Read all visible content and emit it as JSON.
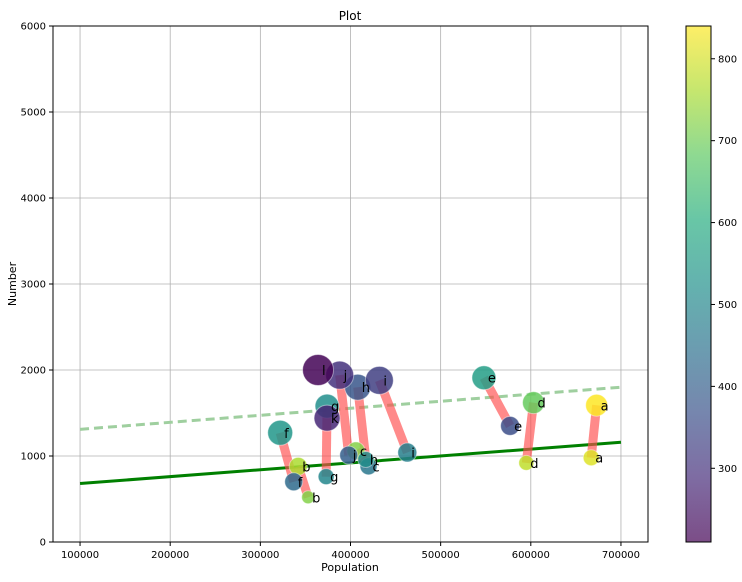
{
  "chart_data": {
    "type": "scatter",
    "title": "Plot",
    "xlabel": "Population",
    "ylabel": "Number",
    "xlim": [
      70000,
      730000
    ],
    "ylim": [
      0,
      6000
    ],
    "x_ticks": [
      100000,
      200000,
      300000,
      400000,
      500000,
      600000,
      700000
    ],
    "y_ticks": [
      0,
      1000,
      2000,
      3000,
      4000,
      5000,
      6000
    ],
    "grid": true,
    "colorbar": {
      "colormap": "viridis",
      "min": 210,
      "max": 840,
      "ticks": [
        300,
        400,
        500,
        600,
        700,
        800
      ]
    },
    "series": [
      {
        "points": [
          {
            "label": "a",
            "x": 673000,
            "y": 1590,
            "c": 840,
            "s": 22
          },
          {
            "label": "b",
            "x": 342000,
            "y": 880,
            "c": 760,
            "s": 18
          },
          {
            "label": "c",
            "x": 406000,
            "y": 1060,
            "c": 720,
            "s": 18
          },
          {
            "label": "d",
            "x": 603000,
            "y": 1620,
            "c": 690,
            "s": 22
          },
          {
            "label": "e",
            "x": 548000,
            "y": 1910,
            "c": 560,
            "s": 24
          },
          {
            "label": "f",
            "x": 322000,
            "y": 1270,
            "c": 540,
            "s": 25
          },
          {
            "label": "g",
            "x": 374000,
            "y": 1580,
            "c": 520,
            "s": 24
          },
          {
            "label": "h",
            "x": 408000,
            "y": 1800,
            "c": 380,
            "s": 26
          },
          {
            "label": "i",
            "x": 432000,
            "y": 1880,
            "c": 330,
            "s": 28
          },
          {
            "label": "j",
            "x": 388000,
            "y": 1940,
            "c": 300,
            "s": 28
          },
          {
            "label": "k",
            "x": 374000,
            "y": 1440,
            "c": 280,
            "s": 26
          },
          {
            "label": "l",
            "x": 364000,
            "y": 2000,
            "c": 215,
            "s": 31
          }
        ]
      },
      {
        "points": [
          {
            "label": "a",
            "x": 667000,
            "y": 980,
            "c": 810,
            "s": 16
          },
          {
            "label": "b",
            "x": 353000,
            "y": 520,
            "c": 720,
            "s": 13
          },
          {
            "label": "c",
            "x": 420000,
            "y": 880,
            "c": 460,
            "s": 17
          },
          {
            "label": "d",
            "x": 595000,
            "y": 920,
            "c": 780,
            "s": 15
          },
          {
            "label": "e",
            "x": 577000,
            "y": 1350,
            "c": 360,
            "s": 19
          },
          {
            "label": "f",
            "x": 337000,
            "y": 700,
            "c": 430,
            "s": 18
          },
          {
            "label": "g",
            "x": 373000,
            "y": 760,
            "c": 500,
            "s": 16
          },
          {
            "label": "h",
            "x": 417000,
            "y": 960,
            "c": 520,
            "s": 16
          },
          {
            "label": "i",
            "x": 463000,
            "y": 1040,
            "c": 480,
            "s": 19
          },
          {
            "label": "j",
            "x": 398000,
            "y": 1010,
            "c": 400,
            "s": 18
          }
        ]
      }
    ],
    "connections": [
      {
        "label": "a",
        "x1": 673000,
        "y1": 1590,
        "x2": 667000,
        "y2": 980
      },
      {
        "label": "b",
        "x1": 342000,
        "y1": 880,
        "x2": 353000,
        "y2": 520
      },
      {
        "label": "c",
        "x1": 406000,
        "y1": 1060,
        "x2": 420000,
        "y2": 880
      },
      {
        "label": "d",
        "x1": 603000,
        "y1": 1620,
        "x2": 595000,
        "y2": 920
      },
      {
        "label": "e",
        "x1": 548000,
        "y1": 1910,
        "x2": 577000,
        "y2": 1350
      },
      {
        "label": "f",
        "x1": 322000,
        "y1": 1270,
        "x2": 337000,
        "y2": 700
      },
      {
        "label": "g",
        "x1": 374000,
        "y1": 1580,
        "x2": 373000,
        "y2": 760
      },
      {
        "label": "h",
        "x1": 408000,
        "y1": 1800,
        "x2": 417000,
        "y2": 960
      },
      {
        "label": "i",
        "x1": 432000,
        "y1": 1880,
        "x2": 463000,
        "y2": 1040
      },
      {
        "label": "j",
        "x1": 388000,
        "y1": 1940,
        "x2": 398000,
        "y2": 1010
      }
    ],
    "trend_lines": [
      {
        "style": "solid",
        "color": "#008000",
        "x1": 100000,
        "y1": 680,
        "x2": 700000,
        "y2": 1160
      },
      {
        "style": "dashed",
        "color": "#9fcf9f",
        "x1": 100000,
        "y1": 1310,
        "x2": 700000,
        "y2": 1800
      }
    ],
    "connection_color": "#ff4d4d"
  }
}
